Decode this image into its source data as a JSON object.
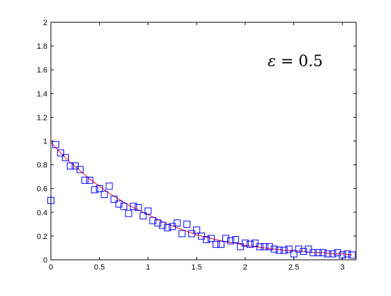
{
  "chart_data": {
    "type": "scatter",
    "title": "",
    "xlabel": "",
    "ylabel": "",
    "xlim": [
      0,
      3.14159
    ],
    "ylim": [
      0,
      2
    ],
    "xticks": [
      "0",
      "0.5",
      "1",
      "1.5",
      "2",
      "2.5",
      "3"
    ],
    "yticks": [
      "0",
      "0.2",
      "0.4",
      "0.6",
      "0.8",
      "1",
      "1.2",
      "1.4",
      "1.6",
      "1.8",
      "2"
    ],
    "grid": false,
    "annotation": {
      "symbol": "ε",
      "rest": " = 0.5"
    },
    "colors": {
      "markers": "#0000ff",
      "fit_line": "#ff0000",
      "axes": "#000000"
    },
    "series": [
      {
        "kind": "markers",
        "marker": "square",
        "x": [
          0.0,
          0.05,
          0.1,
          0.15,
          0.2,
          0.25,
          0.3,
          0.35,
          0.4,
          0.45,
          0.5,
          0.55,
          0.6,
          0.65,
          0.7,
          0.75,
          0.8,
          0.85,
          0.9,
          0.95,
          1.0,
          1.05,
          1.1,
          1.15,
          1.2,
          1.25,
          1.3,
          1.35,
          1.4,
          1.45,
          1.5,
          1.55,
          1.6,
          1.65,
          1.7,
          1.75,
          1.8,
          1.85,
          1.9,
          1.95,
          2.0,
          2.05,
          2.1,
          2.15,
          2.2,
          2.25,
          2.3,
          2.35,
          2.4,
          2.45,
          2.5,
          2.55,
          2.6,
          2.65,
          2.7,
          2.75,
          2.8,
          2.85,
          2.9,
          2.95,
          3.0,
          3.05,
          3.1
        ],
        "y": [
          0.5,
          0.97,
          0.9,
          0.86,
          0.79,
          0.79,
          0.76,
          0.67,
          0.67,
          0.59,
          0.6,
          0.55,
          0.62,
          0.51,
          0.47,
          0.45,
          0.39,
          0.45,
          0.44,
          0.37,
          0.41,
          0.33,
          0.31,
          0.29,
          0.27,
          0.28,
          0.31,
          0.22,
          0.3,
          0.22,
          0.25,
          0.2,
          0.17,
          0.18,
          0.13,
          0.13,
          0.18,
          0.16,
          0.17,
          0.11,
          0.14,
          0.13,
          0.14,
          0.11,
          0.11,
          0.11,
          0.09,
          0.08,
          0.08,
          0.09,
          0.05,
          0.09,
          0.07,
          0.09,
          0.06,
          0.06,
          0.06,
          0.05,
          0.05,
          0.06,
          0.04,
          0.05,
          0.04
        ]
      },
      {
        "kind": "line",
        "x": [
          0.0,
          0.1,
          0.2,
          0.3,
          0.4,
          0.5,
          0.6,
          0.7,
          0.8,
          0.9,
          1.0,
          1.1,
          1.2,
          1.3,
          1.4,
          1.5,
          1.6,
          1.7,
          1.8,
          1.9,
          2.0,
          2.1,
          2.2,
          2.3,
          2.4,
          2.5,
          2.6,
          2.7,
          2.8,
          2.9,
          3.0,
          3.1
        ],
        "y": [
          0.99,
          0.9,
          0.82,
          0.75,
          0.68,
          0.62,
          0.56,
          0.51,
          0.46,
          0.42,
          0.38,
          0.34,
          0.3,
          0.27,
          0.24,
          0.21,
          0.19,
          0.17,
          0.15,
          0.14,
          0.12,
          0.11,
          0.1,
          0.09,
          0.08,
          0.08,
          0.07,
          0.06,
          0.06,
          0.05,
          0.05,
          0.04
        ]
      }
    ]
  }
}
